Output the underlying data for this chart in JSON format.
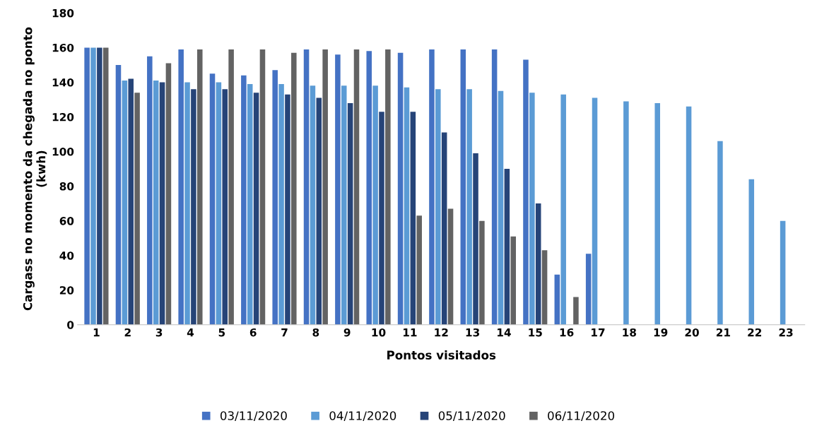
{
  "chart_data": {
    "type": "bar",
    "xlabel": "Pontos visitados",
    "ylabel": "Cargass no momento da chegada no ponto\n(kwh)",
    "categories": [
      "1",
      "2",
      "3",
      "4",
      "5",
      "6",
      "7",
      "8",
      "9",
      "10",
      "11",
      "12",
      "13",
      "14",
      "15",
      "16",
      "17",
      "18",
      "19",
      "20",
      "21",
      "22",
      "23"
    ],
    "series": [
      {
        "name": "03/11/2020",
        "color": "#4472c4",
        "values": [
          160,
          150,
          155,
          159,
          145,
          144,
          147,
          159,
          156,
          158,
          157,
          159,
          159,
          159,
          153,
          29,
          41,
          null,
          null,
          null,
          null,
          null,
          null
        ]
      },
      {
        "name": "04/11/2020",
        "color": "#5b9bd5",
        "values": [
          160,
          141,
          141,
          140,
          140,
          139,
          139,
          138,
          138,
          138,
          137,
          136,
          136,
          135,
          134,
          133,
          131,
          129,
          128,
          126,
          106,
          84,
          60
        ]
      },
      {
        "name": "05/11/2020",
        "color": "#264478",
        "values": [
          160,
          142,
          140,
          136,
          136,
          134,
          133,
          131,
          128,
          123,
          123,
          111,
          99,
          90,
          70,
          null,
          null,
          null,
          null,
          null,
          null,
          null,
          null
        ]
      },
      {
        "name": "06/11/2020",
        "color": "#636363",
        "values": [
          160,
          134,
          151,
          159,
          159,
          159,
          157,
          159,
          159,
          159,
          63,
          67,
          60,
          51,
          43,
          16,
          null,
          null,
          null,
          null,
          null,
          null,
          null
        ]
      }
    ],
    "ylim": [
      0,
      180
    ],
    "yticks": [
      0,
      20,
      40,
      60,
      80,
      100,
      120,
      140,
      160,
      180
    ],
    "grid": false,
    "legend": "bottom"
  }
}
